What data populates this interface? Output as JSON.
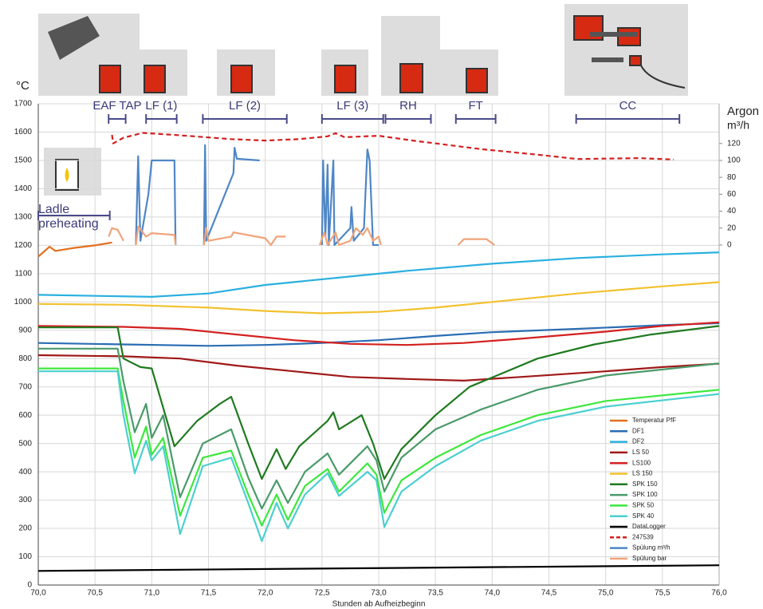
{
  "chart_data": {
    "type": "line",
    "y_label": "°C",
    "y2_label_lines": [
      "Argon",
      "m³/h"
    ],
    "x_label": "Stunden ab Aufheizbeginn",
    "xlim": [
      70,
      76
    ],
    "xticks": [
      {
        "value": 70,
        "label": "70,0"
      },
      {
        "value": 70.5,
        "label": "70,5"
      },
      {
        "value": 71,
        "label": "71,0"
      },
      {
        "value": 71.5,
        "label": "71,5"
      },
      {
        "value": 72,
        "label": "72,0"
      },
      {
        "value": 72.5,
        "label": "72,5"
      },
      {
        "value": 73,
        "label": "73,0"
      },
      {
        "value": 73.5,
        "label": "73,5"
      },
      {
        "value": 74,
        "label": "74,0"
      },
      {
        "value": 74.5,
        "label": "74,5"
      },
      {
        "value": 75,
        "label": "75,0"
      },
      {
        "value": 75.5,
        "label": "75,5"
      },
      {
        "value": 76,
        "label": "76,0"
      }
    ],
    "ylim": [
      0,
      1700
    ],
    "yticks": [
      0,
      100,
      200,
      300,
      400,
      500,
      600,
      700,
      800,
      900,
      1000,
      1100,
      1200,
      1300,
      1400,
      1500,
      1600,
      1700
    ],
    "y2lim": [
      -402,
      167
    ],
    "y2ticks": [
      0,
      20,
      40,
      60,
      80,
      100,
      120
    ],
    "grid": true,
    "legend": "lower right",
    "phases": [
      {
        "label": "Ladle preheating",
        "range": [
          70.0,
          70.63
        ]
      },
      {
        "label": "EAF TAP",
        "range": [
          70.62,
          70.77
        ]
      },
      {
        "label": "LF (1)",
        "range": [
          70.95,
          71.22
        ]
      },
      {
        "label": "LF (2)",
        "range": [
          71.45,
          72.19
        ]
      },
      {
        "label": "LF (3)",
        "range": [
          72.5,
          73.04
        ]
      },
      {
        "label": "RH",
        "range": [
          73.06,
          73.46
        ]
      },
      {
        "label": "FT",
        "range": [
          73.68,
          74.03
        ]
      },
      {
        "label": "CC",
        "range": [
          74.74,
          75.65
        ]
      }
    ],
    "series": [
      {
        "name": "Temperatur PfF",
        "color": "#e2701f",
        "x": [
          70,
          70.1,
          70.15,
          70.3,
          70.5,
          70.65
        ],
        "values": [
          1160,
          1195,
          1180,
          1190,
          1200,
          1210
        ]
      },
      {
        "name": "DF1",
        "color": "#2a6db3",
        "x": [
          70,
          70.75,
          71.5,
          72,
          72.5,
          73,
          73.5,
          74,
          74.75,
          75.5,
          76
        ],
        "values": [
          855,
          850,
          845,
          848,
          855,
          865,
          880,
          893,
          905,
          918,
          925
        ]
      },
      {
        "name": "DF2",
        "color": "#2ab0de",
        "x": [
          70,
          71,
          71.5,
          72,
          72.75,
          73.25,
          74,
          74.75,
          75.5,
          76
        ],
        "values": [
          1025,
          1018,
          1030,
          1060,
          1090,
          1110,
          1135,
          1155,
          1168,
          1175
        ]
      },
      {
        "name": "LS 50",
        "color": "#a01818",
        "x": [
          70,
          70.75,
          71.25,
          71.75,
          72.25,
          72.75,
          73.25,
          73.75,
          74.25,
          75,
          75.5,
          76
        ],
        "values": [
          812,
          808,
          800,
          775,
          755,
          735,
          728,
          722,
          735,
          755,
          770,
          782
        ]
      },
      {
        "name": "LS100",
        "color": "#d42020",
        "x": [
          70,
          70.75,
          71.25,
          71.75,
          72.25,
          72.75,
          73.25,
          73.75,
          74.25,
          75,
          75.5,
          76
        ],
        "values": [
          915,
          912,
          905,
          885,
          865,
          852,
          848,
          855,
          870,
          895,
          915,
          928
        ]
      },
      {
        "name": "LS 150",
        "color": "#f2c12e",
        "x": [
          70,
          70.75,
          71.5,
          72,
          72.5,
          73,
          73.5,
          74,
          74.75,
          75.5,
          76
        ],
        "values": [
          993,
          990,
          980,
          968,
          960,
          965,
          980,
          1000,
          1030,
          1055,
          1070
        ]
      },
      {
        "name": "SPK 150",
        "color": "#1f7a1f",
        "x": [
          70,
          70.7,
          70.75,
          70.9,
          71.0,
          71.2,
          71.4,
          71.5,
          71.6,
          71.7,
          71.85,
          71.97,
          72.1,
          72.18,
          72.3,
          72.55,
          72.6,
          72.65,
          72.85,
          72.95,
          73.05,
          73.2,
          73.5,
          73.8,
          74.1,
          74.4,
          74.9,
          75.4,
          76
        ],
        "values": [
          910,
          910,
          800,
          770,
          765,
          490,
          580,
          610,
          640,
          665,
          500,
          375,
          480,
          410,
          490,
          580,
          610,
          550,
          600,
          500,
          375,
          480,
          600,
          700,
          750,
          800,
          850,
          885,
          915
        ]
      },
      {
        "name": "SPK 100",
        "color": "#4a9a6a",
        "x": [
          70,
          70.7,
          70.75,
          70.85,
          70.95,
          71.0,
          71.1,
          71.25,
          71.45,
          71.7,
          71.85,
          71.97,
          72.1,
          72.2,
          72.35,
          72.55,
          72.65,
          72.9,
          72.98,
          73.05,
          73.2,
          73.5,
          73.9,
          74.4,
          75,
          76
        ],
        "values": [
          835,
          835,
          720,
          540,
          640,
          520,
          600,
          310,
          500,
          550,
          380,
          270,
          370,
          290,
          400,
          465,
          390,
          490,
          440,
          330,
          450,
          550,
          620,
          690,
          740,
          783
        ]
      },
      {
        "name": "SPK 50",
        "color": "#3de83d",
        "x": [
          70,
          70.7,
          70.75,
          70.85,
          70.95,
          71.0,
          71.1,
          71.25,
          71.45,
          71.7,
          71.85,
          71.97,
          72.1,
          72.2,
          72.35,
          72.55,
          72.65,
          72.9,
          72.98,
          73.05,
          73.2,
          73.5,
          73.9,
          74.4,
          75,
          76
        ],
        "values": [
          765,
          765,
          650,
          450,
          560,
          460,
          520,
          245,
          450,
          475,
          320,
          210,
          320,
          230,
          350,
          410,
          330,
          430,
          390,
          255,
          370,
          450,
          530,
          600,
          650,
          690
        ]
      },
      {
        "name": "SPK 40",
        "color": "#4ccfcf",
        "x": [
          70,
          70.7,
          70.75,
          70.85,
          70.95,
          71.0,
          71.1,
          71.25,
          71.45,
          71.7,
          71.85,
          71.97,
          72.1,
          72.2,
          72.35,
          72.55,
          72.65,
          72.9,
          72.98,
          73.05,
          73.2,
          73.5,
          73.9,
          74.4,
          75,
          76
        ],
        "values": [
          755,
          755,
          600,
          395,
          510,
          440,
          490,
          180,
          420,
          450,
          290,
          155,
          290,
          200,
          320,
          395,
          315,
          400,
          370,
          205,
          330,
          420,
          510,
          580,
          630,
          675
        ]
      },
      {
        "name": "DataLogger",
        "color": "#000000",
        "x": [
          70,
          76
        ],
        "values": [
          50,
          70
        ]
      },
      {
        "name": "247539",
        "color": "#d42020",
        "style": "dashed",
        "x": [
          70.65,
          70.66,
          70.75,
          70.92,
          71.2,
          71.7,
          72.0,
          72.3,
          72.55,
          72.62,
          72.7,
          73.0,
          73.3,
          73.9,
          74.4,
          74.75,
          75.3,
          75.6
        ],
        "values": [
          1590,
          1560,
          1580,
          1597,
          1590,
          1575,
          1570,
          1575,
          1585,
          1596,
          1582,
          1587,
          1570,
          1540,
          1520,
          1505,
          1508,
          1503
        ]
      },
      {
        "name": "Spülung m³/h",
        "color": "#4f86c6",
        "axis": "y2",
        "x": [
          70.86,
          70.88,
          70.9,
          70.97,
          71.0,
          71.2,
          71.21,
          null,
          71.46,
          71.47,
          71.48,
          71.72,
          71.73,
          71.75,
          71.95,
          null,
          72.5,
          72.51,
          72.53,
          72.55,
          72.56,
          72.6,
          72.61,
          72.75,
          72.76,
          72.78,
          72.87,
          72.9,
          72.92,
          72.95,
          73.0
        ],
        "values": [
          0,
          105,
          5,
          60,
          100,
          100,
          0,
          null,
          0,
          118,
          5,
          85,
          115,
          102,
          100,
          null,
          0,
          100,
          10,
          95,
          0,
          100,
          0,
          20,
          45,
          5,
          20,
          113,
          100,
          0,
          0
        ]
      },
      {
        "name": "Spülung bar",
        "color": "#f0a47a",
        "axis": "y2",
        "x": [
          70.62,
          70.65,
          70.7,
          70.75,
          null,
          70.86,
          70.88,
          70.95,
          71.0,
          71.2,
          71.21,
          null,
          71.46,
          71.48,
          71.5,
          71.7,
          71.72,
          72.0,
          72.05,
          72.1,
          72.18,
          null,
          72.48,
          72.52,
          72.55,
          72.62,
          72.65,
          72.75,
          72.8,
          72.86,
          72.9,
          72.95,
          73.0,
          73.02,
          null,
          73.7,
          73.75,
          73.95,
          74.02
        ],
        "values": [
          10,
          20,
          18,
          5,
          null,
          0,
          22,
          10,
          14,
          12,
          0,
          null,
          0,
          20,
          5,
          10,
          15,
          8,
          0,
          10,
          10,
          null,
          0,
          15,
          0,
          15,
          0,
          5,
          20,
          12,
          20,
          5,
          10,
          0,
          null,
          0,
          7,
          7,
          0
        ]
      }
    ]
  }
}
